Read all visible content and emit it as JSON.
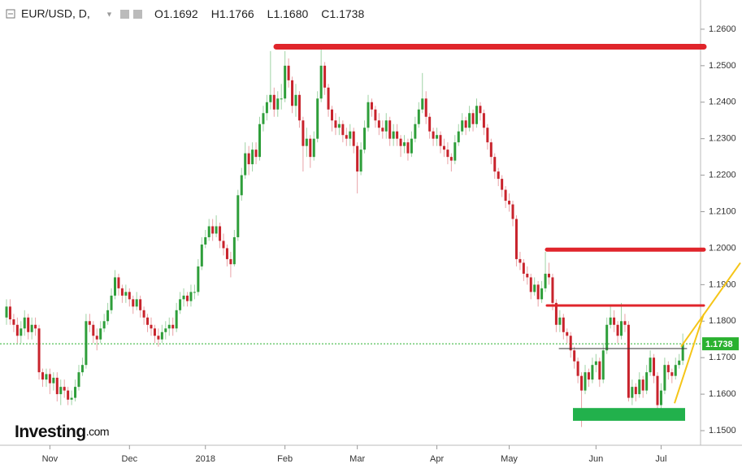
{
  "header": {
    "symbol": "EUR/USD, D,",
    "ohlc": [
      {
        "key": "O",
        "text": "1.1692"
      },
      {
        "key": "H",
        "text": "1.1766"
      },
      {
        "key": "L",
        "text": "1.1680"
      },
      {
        "key": "C",
        "text": "1.1738"
      }
    ]
  },
  "logo": {
    "brand": "Investing",
    "suffix": ".com"
  },
  "chart_data": {
    "type": "candlestick",
    "up_color": "#2e9e3a",
    "down_color": "#c8232c",
    "ylim": [
      1.146,
      1.268
    ],
    "yticks": [
      {
        "value": 1.15,
        "label": "1.1500"
      },
      {
        "value": 1.16,
        "label": "1.1600"
      },
      {
        "value": 1.17,
        "label": "1.1700"
      },
      {
        "value": 1.18,
        "label": "1.1800"
      },
      {
        "value": 1.19,
        "label": "1.1900"
      },
      {
        "value": 1.2,
        "label": "1.2000"
      },
      {
        "value": 1.21,
        "label": "1.2100"
      },
      {
        "value": 1.22,
        "label": "1.2200"
      },
      {
        "value": 1.23,
        "label": "1.2300"
      },
      {
        "value": 1.24,
        "label": "1.2400"
      },
      {
        "value": 1.25,
        "label": "1.2500"
      },
      {
        "value": 1.26,
        "label": "1.2600"
      }
    ],
    "current": {
      "value": 1.1738,
      "label": "1.1738",
      "color": "#2ab12f"
    },
    "levels": [
      {
        "value": 1.2552,
        "color": "#e0252b"
      },
      {
        "value": 1.1996,
        "color": "#e0252b"
      },
      {
        "value": 1.1843,
        "color": "#e0252b"
      },
      {
        "value": 1.1725,
        "color": "#333333"
      }
    ],
    "zone": {
      "low": 1.1527,
      "high": 1.1562,
      "color": "#22b14c"
    },
    "trendlines": [
      {
        "from": 1.1575,
        "to": 1.182,
        "color": "#f5c518"
      },
      {
        "from": 1.173,
        "to": 1.196,
        "color": "#f5c518"
      }
    ],
    "categories": [
      null,
      null,
      null,
      null,
      null,
      null,
      null,
      null,
      null,
      null,
      null,
      null,
      "Nov",
      null,
      null,
      null,
      null,
      null,
      null,
      null,
      null,
      null,
      null,
      null,
      null,
      null,
      null,
      null,
      null,
      null,
      null,
      null,
      null,
      null,
      "Dec",
      null,
      null,
      null,
      null,
      null,
      null,
      null,
      null,
      null,
      null,
      null,
      null,
      null,
      null,
      null,
      null,
      null,
      null,
      null,
      null,
      "2018",
      null,
      null,
      null,
      null,
      null,
      null,
      null,
      null,
      null,
      null,
      null,
      null,
      null,
      null,
      null,
      null,
      null,
      null,
      null,
      null,
      null,
      "Feb",
      null,
      null,
      null,
      null,
      null,
      null,
      null,
      null,
      null,
      null,
      null,
      null,
      null,
      null,
      null,
      null,
      null,
      null,
      null,
      "Mar",
      null,
      null,
      null,
      null,
      null,
      null,
      null,
      null,
      null,
      null,
      null,
      null,
      null,
      null,
      null,
      null,
      null,
      null,
      null,
      null,
      null,
      "Apr",
      null,
      null,
      null,
      null,
      null,
      null,
      null,
      null,
      null,
      null,
      null,
      null,
      null,
      null,
      null,
      null,
      null,
      null,
      null,
      "May",
      null,
      null,
      null,
      null,
      null,
      null,
      null,
      null,
      null,
      null,
      null,
      null,
      null,
      null,
      null,
      null,
      null,
      null,
      null,
      null,
      null,
      null,
      null,
      "Jun",
      null,
      null,
      null,
      null,
      null,
      null,
      null,
      null,
      null,
      null,
      null,
      null,
      null,
      null,
      null,
      null,
      null,
      "Jul",
      null,
      null,
      null,
      null,
      null
    ],
    "candles": [
      [
        1.181,
        1.186,
        1.179,
        1.184
      ],
      [
        1.184,
        1.186,
        1.179,
        1.1805
      ],
      [
        1.1805,
        1.182,
        1.177,
        1.179
      ],
      [
        1.179,
        1.181,
        1.174,
        1.176
      ],
      [
        1.176,
        1.18,
        1.174,
        1.178
      ],
      [
        1.178,
        1.183,
        1.176,
        1.181
      ],
      [
        1.181,
        1.182,
        1.175,
        1.177
      ],
      [
        1.177,
        1.181,
        1.175,
        1.179
      ],
      [
        1.179,
        1.181,
        1.176,
        1.178
      ],
      [
        1.178,
        1.179,
        1.164,
        1.166
      ],
      [
        1.166,
        1.167,
        1.162,
        1.164
      ],
      [
        1.164,
        1.167,
        1.162,
        1.1655
      ],
      [
        1.1655,
        1.167,
        1.16,
        1.163
      ],
      [
        1.163,
        1.166,
        1.161,
        1.1645
      ],
      [
        1.1645,
        1.166,
        1.158,
        1.16
      ],
      [
        1.16,
        1.164,
        1.157,
        1.162
      ],
      [
        1.162,
        1.164,
        1.159,
        1.161
      ],
      [
        1.161,
        1.162,
        1.157,
        1.1585
      ],
      [
        1.1585,
        1.161,
        1.157,
        1.159
      ],
      [
        1.159,
        1.164,
        1.158,
        1.162
      ],
      [
        1.162,
        1.168,
        1.161,
        1.166
      ],
      [
        1.166,
        1.17,
        1.165,
        1.168
      ],
      [
        1.168,
        1.182,
        1.167,
        1.18
      ],
      [
        1.18,
        1.182,
        1.177,
        1.179
      ],
      [
        1.179,
        1.18,
        1.174,
        1.176
      ],
      [
        1.176,
        1.178,
        1.172,
        1.175
      ],
      [
        1.175,
        1.18,
        1.174,
        1.178
      ],
      [
        1.178,
        1.182,
        1.177,
        1.18
      ],
      [
        1.18,
        1.185,
        1.179,
        1.183
      ],
      [
        1.183,
        1.189,
        1.182,
        1.187
      ],
      [
        1.187,
        1.194,
        1.186,
        1.192
      ],
      [
        1.192,
        1.193,
        1.187,
        1.189
      ],
      [
        1.189,
        1.19,
        1.185,
        1.187
      ],
      [
        1.187,
        1.19,
        1.185,
        1.188
      ],
      [
        1.188,
        1.189,
        1.184,
        1.186
      ],
      [
        1.186,
        1.187,
        1.182,
        1.184
      ],
      [
        1.184,
        1.188,
        1.183,
        1.186
      ],
      [
        1.186,
        1.187,
        1.181,
        1.183
      ],
      [
        1.183,
        1.184,
        1.179,
        1.181
      ],
      [
        1.181,
        1.182,
        1.177,
        1.179
      ],
      [
        1.179,
        1.181,
        1.176,
        1.178
      ],
      [
        1.178,
        1.179,
        1.174,
        1.176
      ],
      [
        1.176,
        1.178,
        1.173,
        1.175
      ],
      [
        1.175,
        1.179,
        1.174,
        1.177
      ],
      [
        1.177,
        1.18,
        1.175,
        1.178
      ],
      [
        1.178,
        1.181,
        1.176,
        1.179
      ],
      [
        1.179,
        1.181,
        1.176,
        1.178
      ],
      [
        1.178,
        1.185,
        1.177,
        1.183
      ],
      [
        1.183,
        1.188,
        1.182,
        1.186
      ],
      [
        1.186,
        1.189,
        1.184,
        1.187
      ],
      [
        1.187,
        1.188,
        1.184,
        1.1855
      ],
      [
        1.1855,
        1.19,
        1.184,
        1.188
      ],
      [
        1.188,
        1.19,
        1.186,
        1.188
      ],
      [
        1.188,
        1.197,
        1.187,
        1.195
      ],
      [
        1.195,
        1.203,
        1.194,
        1.201
      ],
      [
        1.201,
        1.205,
        1.2,
        1.203
      ],
      [
        1.203,
        1.208,
        1.202,
        1.206
      ],
      [
        1.206,
        1.208,
        1.202,
        1.204
      ],
      [
        1.204,
        1.209,
        1.203,
        1.206
      ],
      [
        1.206,
        1.207,
        1.2,
        1.202
      ],
      [
        1.202,
        1.204,
        1.198,
        1.2
      ],
      [
        1.2,
        1.201,
        1.195,
        1.197
      ],
      [
        1.197,
        1.199,
        1.192,
        1.1956
      ],
      [
        1.1956,
        1.205,
        1.195,
        1.203
      ],
      [
        1.203,
        1.216,
        1.202,
        1.2145
      ],
      [
        1.2145,
        1.222,
        1.213,
        1.22
      ],
      [
        1.22,
        1.229,
        1.219,
        1.226
      ],
      [
        1.226,
        1.228,
        1.22,
        1.223
      ],
      [
        1.223,
        1.229,
        1.221,
        1.227
      ],
      [
        1.227,
        1.229,
        1.223,
        1.225
      ],
      [
        1.225,
        1.236,
        1.224,
        1.234
      ],
      [
        1.234,
        1.239,
        1.232,
        1.237
      ],
      [
        1.237,
        1.242,
        1.235,
        1.24
      ],
      [
        1.24,
        1.254,
        1.238,
        1.242
      ],
      [
        1.242,
        1.244,
        1.236,
        1.238
      ],
      [
        1.238,
        1.243,
        1.236,
        1.241
      ],
      [
        1.241,
        1.245,
        1.238,
        1.241
      ],
      [
        1.241,
        1.254,
        1.24,
        1.25
      ],
      [
        1.25,
        1.252,
        1.244,
        1.246
      ],
      [
        1.246,
        1.247,
        1.237,
        1.239
      ],
      [
        1.239,
        1.245,
        1.236,
        1.242
      ],
      [
        1.242,
        1.243,
        1.233,
        1.235
      ],
      [
        1.235,
        1.236,
        1.221,
        1.228
      ],
      [
        1.228,
        1.233,
        1.225,
        1.23
      ],
      [
        1.23,
        1.231,
        1.222,
        1.225
      ],
      [
        1.225,
        1.232,
        1.224,
        1.23
      ],
      [
        1.23,
        1.243,
        1.229,
        1.241
      ],
      [
        1.241,
        1.256,
        1.24,
        1.25
      ],
      [
        1.25,
        1.251,
        1.242,
        1.244
      ],
      [
        1.244,
        1.245,
        1.236,
        1.238
      ],
      [
        1.238,
        1.239,
        1.232,
        1.235
      ],
      [
        1.235,
        1.237,
        1.231,
        1.233
      ],
      [
        1.233,
        1.236,
        1.231,
        1.234
      ],
      [
        1.234,
        1.235,
        1.229,
        1.231
      ],
      [
        1.231,
        1.233,
        1.228,
        1.23
      ],
      [
        1.23,
        1.234,
        1.228,
        1.232
      ],
      [
        1.232,
        1.233,
        1.226,
        1.228
      ],
      [
        1.228,
        1.229,
        1.215,
        1.221
      ],
      [
        1.221,
        1.229,
        1.22,
        1.227
      ],
      [
        1.227,
        1.235,
        1.226,
        1.233
      ],
      [
        1.233,
        1.242,
        1.232,
        1.24
      ],
      [
        1.24,
        1.241,
        1.236,
        1.238
      ],
      [
        1.238,
        1.239,
        1.233,
        1.235
      ],
      [
        1.235,
        1.237,
        1.231,
        1.233
      ],
      [
        1.233,
        1.235,
        1.23,
        1.232
      ],
      [
        1.232,
        1.237,
        1.23,
        1.235
      ],
      [
        1.235,
        1.236,
        1.228,
        1.23
      ],
      [
        1.23,
        1.234,
        1.228,
        1.232
      ],
      [
        1.232,
        1.234,
        1.228,
        1.23
      ],
      [
        1.23,
        1.231,
        1.225,
        1.228
      ],
      [
        1.228,
        1.231,
        1.226,
        1.229
      ],
      [
        1.229,
        1.23,
        1.224,
        1.226
      ],
      [
        1.226,
        1.232,
        1.225,
        1.23
      ],
      [
        1.23,
        1.236,
        1.229,
        1.234
      ],
      [
        1.234,
        1.24,
        1.233,
        1.238
      ],
      [
        1.238,
        1.248,
        1.237,
        1.241
      ],
      [
        1.241,
        1.243,
        1.234,
        1.236
      ],
      [
        1.236,
        1.237,
        1.23,
        1.232
      ],
      [
        1.232,
        1.233,
        1.228,
        1.23
      ],
      [
        1.23,
        1.233,
        1.228,
        1.231
      ],
      [
        1.231,
        1.232,
        1.226,
        1.228
      ],
      [
        1.228,
        1.23,
        1.225,
        1.227
      ],
      [
        1.227,
        1.229,
        1.223,
        1.225
      ],
      [
        1.225,
        1.226,
        1.221,
        1.224
      ],
      [
        1.224,
        1.231,
        1.223,
        1.229
      ],
      [
        1.229,
        1.234,
        1.228,
        1.232
      ],
      [
        1.232,
        1.237,
        1.231,
        1.235
      ],
      [
        1.235,
        1.236,
        1.231,
        1.233
      ],
      [
        1.233,
        1.239,
        1.232,
        1.237
      ],
      [
        1.237,
        1.238,
        1.232,
        1.234
      ],
      [
        1.234,
        1.241,
        1.233,
        1.239
      ],
      [
        1.239,
        1.24,
        1.235,
        1.237
      ],
      [
        1.237,
        1.238,
        1.231,
        1.233
      ],
      [
        1.233,
        1.234,
        1.227,
        1.229
      ],
      [
        1.229,
        1.23,
        1.223,
        1.225
      ],
      [
        1.225,
        1.226,
        1.219,
        1.221
      ],
      [
        1.221,
        1.222,
        1.217,
        1.219
      ],
      [
        1.219,
        1.22,
        1.214,
        1.216
      ],
      [
        1.216,
        1.217,
        1.211,
        1.213
      ],
      [
        1.213,
        1.215,
        1.21,
        1.212
      ],
      [
        1.212,
        1.213,
        1.206,
        1.208
      ],
      [
        1.208,
        1.209,
        1.195,
        1.197
      ],
      [
        1.197,
        1.199,
        1.194,
        1.196
      ],
      [
        1.196,
        1.197,
        1.191,
        1.193
      ],
      [
        1.193,
        1.195,
        1.19,
        1.192
      ],
      [
        1.192,
        1.193,
        1.186,
        1.188
      ],
      [
        1.188,
        1.192,
        1.187,
        1.19
      ],
      [
        1.19,
        1.191,
        1.184,
        1.186
      ],
      [
        1.186,
        1.191,
        1.185,
        1.189
      ],
      [
        1.189,
        1.199,
        1.188,
        1.193
      ],
      [
        1.193,
        1.196,
        1.19,
        1.192
      ],
      [
        1.192,
        1.193,
        1.183,
        1.185
      ],
      [
        1.185,
        1.186,
        1.177,
        1.179
      ],
      [
        1.179,
        1.183,
        1.177,
        1.181
      ],
      [
        1.181,
        1.182,
        1.175,
        1.177
      ],
      [
        1.177,
        1.178,
        1.174,
        1.176
      ],
      [
        1.176,
        1.177,
        1.17,
        1.172
      ],
      [
        1.172,
        1.173,
        1.167,
        1.169
      ],
      [
        1.169,
        1.17,
        1.163,
        1.165
      ],
      [
        1.165,
        1.166,
        1.151,
        1.161
      ],
      [
        1.161,
        1.168,
        1.16,
        1.166
      ],
      [
        1.166,
        1.167,
        1.162,
        1.164
      ],
      [
        1.164,
        1.17,
        1.163,
        1.168
      ],
      [
        1.168,
        1.171,
        1.166,
        1.169
      ],
      [
        1.169,
        1.17,
        1.162,
        1.164
      ],
      [
        1.164,
        1.174,
        1.163,
        1.172
      ],
      [
        1.172,
        1.181,
        1.171,
        1.179
      ],
      [
        1.179,
        1.184,
        1.178,
        1.181
      ],
      [
        1.181,
        1.183,
        1.177,
        1.179
      ],
      [
        1.179,
        1.18,
        1.174,
        1.176
      ],
      [
        1.176,
        1.185,
        1.175,
        1.18
      ],
      [
        1.18,
        1.182,
        1.177,
        1.179
      ],
      [
        1.179,
        1.18,
        1.158,
        1.159
      ],
      [
        1.159,
        1.164,
        1.157,
        1.162
      ],
      [
        1.162,
        1.163,
        1.158,
        1.16
      ],
      [
        1.16,
        1.166,
        1.159,
        1.164
      ],
      [
        1.164,
        1.165,
        1.159,
        1.161
      ],
      [
        1.161,
        1.168,
        1.16,
        1.166
      ],
      [
        1.166,
        1.172,
        1.165,
        1.17
      ],
      [
        1.17,
        1.171,
        1.163,
        1.165
      ],
      [
        1.165,
        1.166,
        1.155,
        1.157
      ],
      [
        1.157,
        1.163,
        1.156,
        1.161
      ],
      [
        1.161,
        1.17,
        1.16,
        1.168
      ],
      [
        1.168,
        1.169,
        1.164,
        1.166
      ],
      [
        1.166,
        1.167,
        1.163,
        1.165
      ],
      [
        1.165,
        1.17,
        1.164,
        1.168
      ],
      [
        1.168,
        1.171,
        1.167,
        1.1692
      ],
      [
        1.1692,
        1.1766,
        1.168,
        1.1738
      ]
    ]
  }
}
